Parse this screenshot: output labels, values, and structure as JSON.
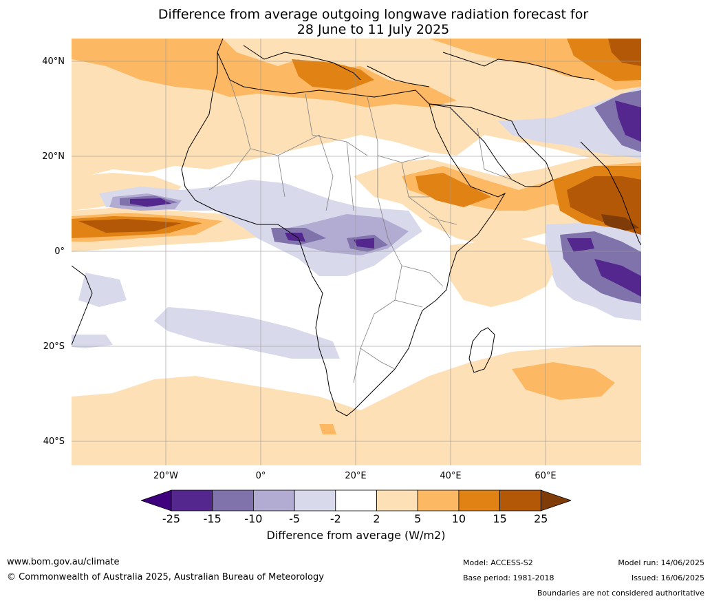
{
  "title_line1": "Difference from average outgoing longwave radiation forecast for",
  "title_line2": "28 June to 11 July 2025",
  "lat_labels": [
    "40°N",
    "20°N",
    "0°",
    "20°S",
    "40°S"
  ],
  "lon_labels": [
    "20°W",
    "0°",
    "20°E",
    "40°E",
    "60°E"
  ],
  "colorbar": {
    "ticks": [
      "-25",
      "-15",
      "-10",
      "-5",
      "-2",
      "2",
      "5",
      "10",
      "15",
      "25"
    ],
    "colors": [
      "#3f007d",
      "#54278f",
      "#8073ac",
      "#b2abd2",
      "#d8daeb",
      "#ffffff",
      "#fee0b6",
      "#fdb863",
      "#e08214",
      "#b35806",
      "#7f3b08"
    ],
    "title": "Difference from average (W/m2)"
  },
  "footer": {
    "website": "www.bom.gov.au/climate",
    "copyright": "© Commonwealth of Australia 2025, Australian Bureau of Meteorology",
    "model": "Model: ACCESS-S2",
    "base_period": "Base period: 1981-2018",
    "model_run": "Model run: 14/06/2025",
    "issued": "Issued: 16/06/2025",
    "disclaimer": "Boundaries are not considered authoritative"
  }
}
